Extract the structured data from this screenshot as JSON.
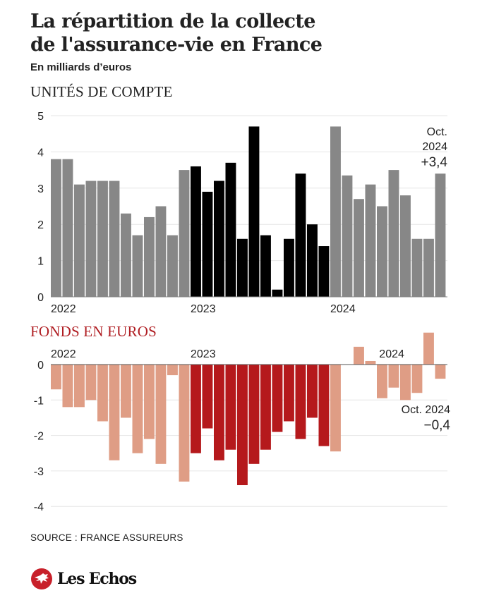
{
  "header": {
    "title_line1": "La répartition de la collecte",
    "title_line2": "de l'assurance-vie en France",
    "subtitle": "En milliards d’euros"
  },
  "footer": {
    "source": "SOURCE : FRANCE ASSUREURS",
    "logo_text": "Les Echos"
  },
  "colors": {
    "uc_default": "#878787",
    "uc_highlight": "#000000",
    "fe_default": "#df9d85",
    "fe_highlight": "#b5191c",
    "fe_title": "#b01e23",
    "grid": "#e6e6e6"
  },
  "chart_data": [
    {
      "type": "bar",
      "title": "UNITÉS DE COMPTE",
      "unit": "En milliards d’euros",
      "ylim": [
        0,
        5
      ],
      "yticks": [
        0,
        1,
        2,
        3,
        4,
        5
      ],
      "ytick_labels": [
        "0",
        "1",
        "2",
        "3",
        "4",
        "5"
      ],
      "grid": true,
      "year_labels": [
        "2022",
        "2023",
        "2024"
      ],
      "categories": [
        "2022-01",
        "2022-02",
        "2022-03",
        "2022-04",
        "2022-05",
        "2022-06",
        "2022-07",
        "2022-08",
        "2022-09",
        "2022-10",
        "2022-11",
        "2022-12",
        "2023-01",
        "2023-02",
        "2023-03",
        "2023-04",
        "2023-05",
        "2023-06",
        "2023-07",
        "2023-08",
        "2023-09",
        "2023-10",
        "2023-11",
        "2023-12",
        "2024-01",
        "2024-02",
        "2024-03",
        "2024-04",
        "2024-05",
        "2024-06",
        "2024-07",
        "2024-08",
        "2024-09",
        "2024-10"
      ],
      "values": [
        3.8,
        3.8,
        3.1,
        3.2,
        3.2,
        3.2,
        2.3,
        1.7,
        2.2,
        2.5,
        1.7,
        3.5,
        3.6,
        2.9,
        3.2,
        3.7,
        1.6,
        4.7,
        1.7,
        0.2,
        1.6,
        3.4,
        2.0,
        1.4,
        4.7,
        3.35,
        2.7,
        3.1,
        2.5,
        3.5,
        2.8,
        1.6,
        1.6,
        3.4
      ],
      "highlight_year": "2023",
      "annotation": {
        "line1": "Oct.",
        "line2": "2024",
        "value": "+3,4"
      }
    },
    {
      "type": "bar",
      "title": "FONDS EN EUROS",
      "unit": "En milliards d’euros",
      "ylim": [
        -4,
        1
      ],
      "yticks": [
        0,
        -1,
        -2,
        -3,
        -4
      ],
      "ytick_labels": [
        "0",
        "-1",
        "-2",
        "-3",
        "-4"
      ],
      "grid": true,
      "year_labels": [
        "2022",
        "2023",
        "2024"
      ],
      "categories": [
        "2022-01",
        "2022-02",
        "2022-03",
        "2022-04",
        "2022-05",
        "2022-06",
        "2022-07",
        "2022-08",
        "2022-09",
        "2022-10",
        "2022-11",
        "2022-12",
        "2023-01",
        "2023-02",
        "2023-03",
        "2023-04",
        "2023-05",
        "2023-06",
        "2023-07",
        "2023-08",
        "2023-09",
        "2023-10",
        "2023-11",
        "2023-12",
        "2024-01",
        "2024-02",
        "2024-03",
        "2024-04",
        "2024-05",
        "2024-06",
        "2024-07",
        "2024-08",
        "2024-09",
        "2024-10"
      ],
      "values": [
        -0.7,
        -1.2,
        -1.2,
        -1.0,
        -1.6,
        -2.7,
        -1.5,
        -2.5,
        -2.1,
        -2.8,
        -0.3,
        -3.3,
        -2.5,
        -1.8,
        -2.7,
        -2.4,
        -3.4,
        -2.8,
        -2.4,
        -1.9,
        -1.6,
        -2.1,
        -1.5,
        -2.3,
        -2.45,
        0.0,
        0.5,
        0.1,
        -0.95,
        -0.65,
        -1.0,
        -0.8,
        0.9,
        -0.4
      ],
      "highlight_year": "2023",
      "annotation": {
        "line1": "Oct. 2024",
        "value": "−0,4"
      }
    }
  ]
}
